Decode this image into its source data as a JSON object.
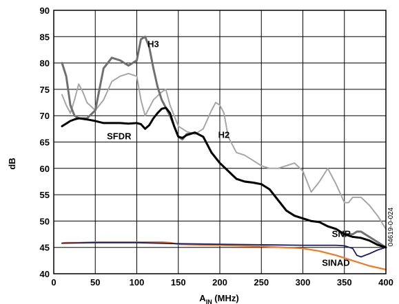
{
  "chart_data": {
    "type": "line",
    "xlabel_main": "A",
    "xlabel_sub": "IN",
    "xlabel_rest": " (MHz)",
    "ylabel": "dB",
    "xlim": [
      0,
      400
    ],
    "ylim": [
      40,
      90
    ],
    "x_ticks": [
      0,
      50,
      100,
      150,
      200,
      250,
      300,
      350,
      400
    ],
    "y_ticks": [
      40,
      45,
      50,
      55,
      60,
      65,
      70,
      75,
      80,
      85,
      90
    ],
    "grid": true,
    "figure_id": "04619-0-024",
    "series": [
      {
        "name": "H2",
        "color": "#a6a6a6",
        "x": [
          10,
          15,
          20,
          25,
          30,
          35,
          40,
          50,
          60,
          70,
          80,
          90,
          100,
          105,
          110,
          115,
          120,
          130,
          135,
          140,
          150,
          160,
          170,
          180,
          190,
          195,
          200,
          205,
          210,
          220,
          230,
          240,
          250,
          260,
          270,
          280,
          290,
          300,
          310,
          320,
          330,
          340,
          350,
          355,
          360,
          365,
          370,
          380,
          390,
          400
        ],
        "y": [
          74,
          72,
          70.5,
          73,
          76,
          74.5,
          72.5,
          71,
          73,
          76.5,
          77.5,
          78,
          77.5,
          73,
          70,
          71.5,
          73,
          74.5,
          75,
          72,
          68,
          67,
          66.5,
          67.5,
          71,
          72.5,
          72,
          70.5,
          66,
          63,
          62.5,
          61.5,
          60.5,
          60,
          60,
          60.5,
          61,
          59.5,
          55.5,
          57.5,
          60,
          57,
          53.5,
          53.5,
          54.5,
          54.5,
          54.5,
          53,
          51,
          48.5
        ]
      },
      {
        "name": "H3",
        "color": "#707070",
        "x": [
          10,
          15,
          20,
          25,
          30,
          40,
          50,
          60,
          70,
          80,
          90,
          100,
          105,
          110,
          115,
          120,
          125,
          130,
          140,
          150,
          155,
          160,
          170,
          180,
          190,
          200,
          210,
          220,
          230,
          240,
          250,
          260,
          270,
          280,
          290,
          300,
          310,
          320,
          330,
          340,
          350,
          360,
          365,
          370,
          375,
          380,
          390,
          400
        ],
        "y": [
          80,
          77.5,
          72,
          70,
          69.5,
          69.5,
          71,
          79,
          81,
          80.5,
          79.5,
          80.5,
          84.5,
          85,
          83,
          79,
          75.5,
          73,
          70,
          66,
          65.5,
          66.5,
          66.8,
          66,
          63,
          61,
          59.5,
          58,
          57.5,
          57.3,
          57,
          56,
          54,
          52,
          51,
          50.5,
          50,
          49.8,
          49,
          48.5,
          47.5,
          47.5,
          48,
          48,
          47.5,
          47,
          46,
          45
        ]
      },
      {
        "name": "SFDR",
        "color": "#000000",
        "x": [
          10,
          15,
          20,
          25,
          30,
          40,
          50,
          60,
          70,
          80,
          90,
          100,
          105,
          110,
          115,
          120,
          125,
          130,
          135,
          140,
          145,
          150,
          155,
          160,
          170,
          180,
          190,
          200,
          210,
          220,
          230,
          240,
          250,
          260,
          270,
          280,
          290,
          300,
          310,
          320,
          330,
          340,
          350,
          360,
          370,
          380,
          390,
          400
        ],
        "y": [
          68,
          68.5,
          69,
          69.3,
          69.5,
          69.3,
          69,
          68.6,
          68.6,
          68.6,
          68.5,
          68.6,
          68.4,
          67.5,
          68.2,
          69.5,
          70.5,
          71.3,
          71.5,
          70.5,
          68,
          66,
          65.8,
          66.3,
          66.8,
          66,
          63,
          61,
          59.5,
          58,
          57.5,
          57.3,
          57,
          56,
          54,
          52,
          51,
          50.5,
          50,
          49.8,
          49,
          48.5,
          47.5,
          47,
          46.8,
          46.3,
          45.5,
          45
        ]
      },
      {
        "name": "SNR",
        "color": "#1a1a66",
        "x": [
          10,
          50,
          100,
          150,
          200,
          250,
          300,
          340,
          350,
          360,
          365,
          370,
          380,
          390,
          400
        ],
        "y": [
          45.8,
          45.9,
          45.9,
          45.7,
          45.6,
          45.5,
          45.4,
          45.4,
          45.3,
          44.8,
          43.5,
          43.2,
          43.8,
          44.5,
          45
        ]
      },
      {
        "name": "SINAD",
        "color": "#f07820",
        "x": [
          10,
          15,
          30,
          50,
          100,
          130,
          140,
          150,
          200,
          250,
          300,
          320,
          340,
          360,
          380,
          400
        ],
        "y": [
          45.8,
          45.9,
          45.9,
          46,
          46,
          46,
          45.9,
          45.6,
          45.4,
          45.2,
          44.8,
          44.3,
          43.5,
          42.5,
          41.5,
          40.8
        ]
      }
    ],
    "labels": [
      {
        "text": "H3",
        "x": 113,
        "y": 83
      },
      {
        "text": "SFDR",
        "x": 64,
        "y": 65.5
      },
      {
        "text": "H2",
        "x": 198,
        "y": 65.8
      },
      {
        "text": "SNR",
        "x": 335,
        "y": 47
      },
      {
        "text": "SINAD",
        "x": 323,
        "y": 41.5
      }
    ]
  }
}
